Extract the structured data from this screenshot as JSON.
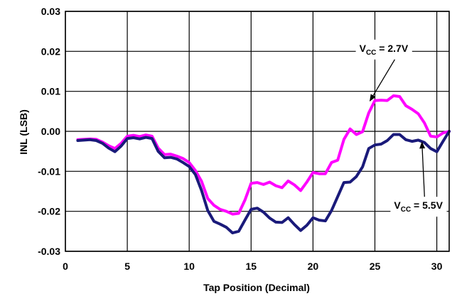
{
  "chart_data": {
    "type": "line",
    "title": "",
    "xlabel": "Tap Position (Decimal)",
    "ylabel": "INL (LSB)",
    "xlim": [
      0,
      31
    ],
    "ylim": [
      -0.03,
      0.03
    ],
    "grid": true,
    "x_ticks": [
      0,
      5,
      10,
      15,
      20,
      25,
      30
    ],
    "x_tick_labels": [
      "0",
      "5",
      "10",
      "15",
      "20",
      "25",
      "30"
    ],
    "y_ticks": [
      0.03,
      0.02,
      0.01,
      0.0,
      -0.01,
      -0.02,
      -0.03
    ],
    "y_tick_labels": [
      "0.03",
      "0.02",
      "0.01",
      "0.00",
      "-0.01",
      "-0.02",
      "-0.03"
    ],
    "series": [
      {
        "name": "VCC = 2.7V",
        "color": "#ff00ff",
        "points": [
          [
            1,
            -0.0021
          ],
          [
            1.5,
            -0.002
          ],
          [
            2,
            -0.0019
          ],
          [
            2.5,
            -0.002
          ],
          [
            3,
            -0.0027
          ],
          [
            3.5,
            -0.0036
          ],
          [
            4,
            -0.0043
          ],
          [
            4.5,
            -0.003
          ],
          [
            5,
            -0.0012
          ],
          [
            5.5,
            -0.001
          ],
          [
            6,
            -0.0013
          ],
          [
            6.5,
            -0.0009
          ],
          [
            7,
            -0.0012
          ],
          [
            7.5,
            -0.0042
          ],
          [
            8,
            -0.0058
          ],
          [
            8.5,
            -0.0057
          ],
          [
            9,
            -0.0062
          ],
          [
            9.5,
            -0.0068
          ],
          [
            10,
            -0.0078
          ],
          [
            10.5,
            -0.0098
          ],
          [
            11,
            -0.0125
          ],
          [
            11.5,
            -0.0168
          ],
          [
            12,
            -0.0185
          ],
          [
            12.5,
            -0.0195
          ],
          [
            13,
            -0.02
          ],
          [
            13.5,
            -0.0207
          ],
          [
            14,
            -0.0205
          ],
          [
            14.5,
            -0.0172
          ],
          [
            15,
            -0.013
          ],
          [
            15.5,
            -0.0128
          ],
          [
            16,
            -0.0133
          ],
          [
            16.5,
            -0.0127
          ],
          [
            17,
            -0.0136
          ],
          [
            17.5,
            -0.0141
          ],
          [
            18,
            -0.0124
          ],
          [
            18.5,
            -0.0134
          ],
          [
            19,
            -0.0148
          ],
          [
            19.5,
            -0.0127
          ],
          [
            20,
            -0.0103
          ],
          [
            20.5,
            -0.0106
          ],
          [
            21,
            -0.0106
          ],
          [
            21.5,
            -0.0078
          ],
          [
            22,
            -0.0072
          ],
          [
            22.5,
            -0.002
          ],
          [
            23,
            0.0006
          ],
          [
            23.5,
            -0.0008
          ],
          [
            24,
            -0.0001
          ],
          [
            24.5,
            0.0046
          ],
          [
            25,
            0.0077
          ],
          [
            25.5,
            0.0078
          ],
          [
            26,
            0.0077
          ],
          [
            26.5,
            0.0089
          ],
          [
            27,
            0.0087
          ],
          [
            27.5,
            0.0064
          ],
          [
            28,
            0.0055
          ],
          [
            28.5,
            0.0044
          ],
          [
            29,
            0.0021
          ],
          [
            29.5,
            -0.0012
          ],
          [
            30,
            -0.0014
          ],
          [
            30.5,
            -0.0004
          ],
          [
            31,
            0.0
          ]
        ]
      },
      {
        "name": "VCC = 5.5V",
        "color": "#1a1a7a",
        "points": [
          [
            1,
            -0.0023
          ],
          [
            1.5,
            -0.0022
          ],
          [
            2,
            -0.0021
          ],
          [
            2.5,
            -0.0023
          ],
          [
            3,
            -0.003
          ],
          [
            3.5,
            -0.0042
          ],
          [
            4,
            -0.0051
          ],
          [
            4.5,
            -0.0037
          ],
          [
            5,
            -0.0018
          ],
          [
            5.5,
            -0.0016
          ],
          [
            6,
            -0.0019
          ],
          [
            6.5,
            -0.0015
          ],
          [
            7,
            -0.0018
          ],
          [
            7.5,
            -0.005
          ],
          [
            8,
            -0.0066
          ],
          [
            8.5,
            -0.0065
          ],
          [
            9,
            -0.0069
          ],
          [
            9.5,
            -0.0078
          ],
          [
            10,
            -0.0088
          ],
          [
            10.5,
            -0.0108
          ],
          [
            11,
            -0.0148
          ],
          [
            11.5,
            -0.0198
          ],
          [
            12,
            -0.0225
          ],
          [
            12.5,
            -0.0232
          ],
          [
            13,
            -0.024
          ],
          [
            13.5,
            -0.0254
          ],
          [
            14,
            -0.025
          ],
          [
            14.5,
            -0.0222
          ],
          [
            15,
            -0.0195
          ],
          [
            15.5,
            -0.0192
          ],
          [
            16,
            -0.0202
          ],
          [
            16.5,
            -0.0217
          ],
          [
            17,
            -0.0227
          ],
          [
            17.5,
            -0.0228
          ],
          [
            18,
            -0.0216
          ],
          [
            18.5,
            -0.0233
          ],
          [
            19,
            -0.0248
          ],
          [
            19.5,
            -0.0235
          ],
          [
            20,
            -0.0216
          ],
          [
            20.5,
            -0.0222
          ],
          [
            21,
            -0.0224
          ],
          [
            21.5,
            -0.0198
          ],
          [
            22,
            -0.0163
          ],
          [
            22.5,
            -0.0128
          ],
          [
            23,
            -0.0127
          ],
          [
            23.5,
            -0.0113
          ],
          [
            24,
            -0.0089
          ],
          [
            24.5,
            -0.0043
          ],
          [
            25,
            -0.0034
          ],
          [
            25.5,
            -0.0032
          ],
          [
            26,
            -0.0023
          ],
          [
            26.5,
            -0.0008
          ],
          [
            27,
            -0.0008
          ],
          [
            27.5,
            -0.0021
          ],
          [
            28,
            -0.0025
          ],
          [
            28.5,
            -0.0022
          ],
          [
            29,
            -0.0028
          ],
          [
            29.5,
            -0.0043
          ],
          [
            30,
            -0.0051
          ],
          [
            30.5,
            -0.0025
          ],
          [
            31,
            0.0
          ]
        ]
      }
    ],
    "annotations": [
      {
        "main": "V",
        "sub": "CC",
        "rest": " = 2.7V",
        "box_anchor": [
          23.4,
          0.0208
        ],
        "arrow_to": [
          24.6,
          0.0076
        ]
      },
      {
        "main": "V",
        "sub": "CC",
        "rest": " = 5.5V",
        "box_anchor": [
          26.2,
          -0.0185
        ],
        "arrow_to": [
          28.8,
          -0.0027
        ]
      }
    ]
  }
}
